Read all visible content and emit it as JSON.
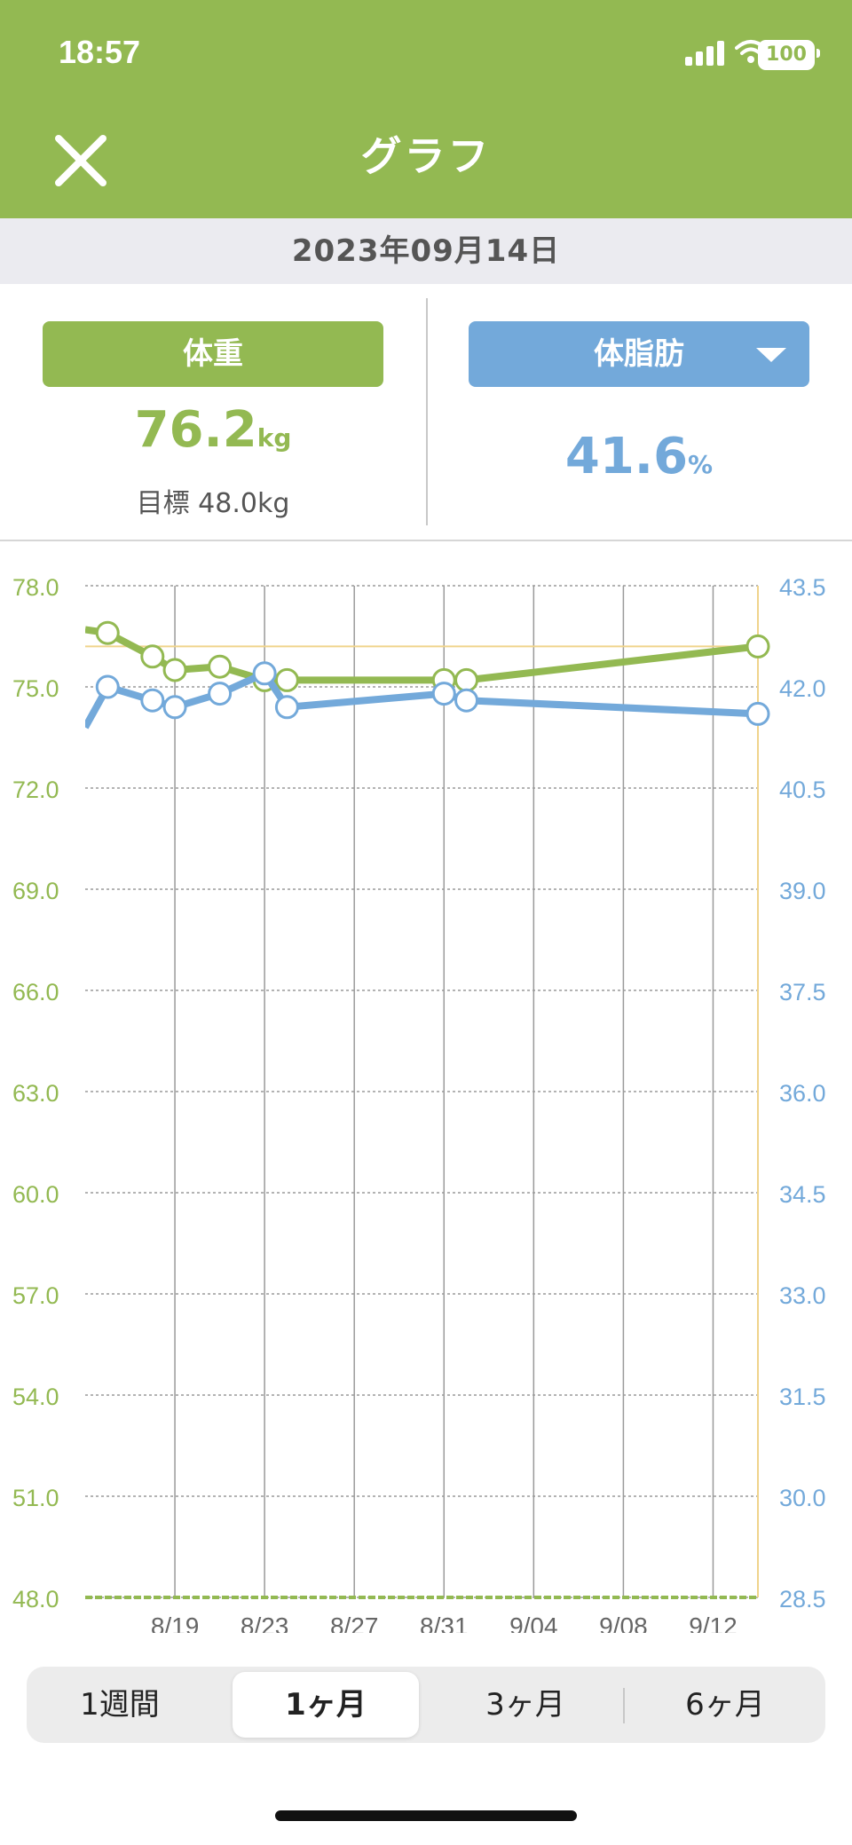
{
  "status_bar": {
    "time": "18:57",
    "battery": "100"
  },
  "header": {
    "title": "グラフ"
  },
  "date_bar": {
    "date": "2023年09月14日"
  },
  "weight_panel": {
    "label": "体重",
    "value": "76.2",
    "unit": "kg",
    "goal": "目標 48.0kg"
  },
  "fat_panel": {
    "label": "体脂肪",
    "value": "41.6",
    "unit": "%"
  },
  "colors": {
    "weight": "#93b952",
    "fat": "#73a9da",
    "goal_line": "#f0d48c"
  },
  "chart_data": {
    "type": "line",
    "x_tick_labels": [
      "8/19",
      "8/23",
      "8/27",
      "8/31",
      "9/04",
      "9/08",
      "9/12"
    ],
    "y_left": {
      "ticks": [
        "78.0",
        "75.0",
        "72.0",
        "69.0",
        "66.0",
        "63.0",
        "60.0",
        "57.0",
        "54.0",
        "51.0",
        "48.0"
      ],
      "ylim": [
        48,
        78
      ]
    },
    "y_right": {
      "ticks": [
        "43.5",
        "42.0",
        "40.5",
        "39.0",
        "37.5",
        "36.0",
        "34.5",
        "33.0",
        "31.5",
        "30.0",
        "28.5"
      ],
      "ylim": [
        28.5,
        43.5
      ]
    },
    "goal_value": 48.0,
    "current_weight_line": 76.2,
    "series": [
      {
        "name": "体重",
        "axis": "left",
        "x": [
          "8/15",
          "8/16",
          "8/18",
          "8/19",
          "8/21",
          "8/23",
          "8/24",
          "8/31",
          "9/01",
          "9/14"
        ],
        "values": [
          76.7,
          76.6,
          75.9,
          75.5,
          75.6,
          75.2,
          75.2,
          75.2,
          75.2,
          76.2
        ],
        "markers": [
          false,
          true,
          true,
          true,
          true,
          true,
          true,
          true,
          true,
          true
        ]
      },
      {
        "name": "体脂肪",
        "axis": "right",
        "x": [
          "8/15",
          "8/16",
          "8/18",
          "8/19",
          "8/21",
          "8/23",
          "8/24",
          "8/31",
          "9/01",
          "9/14"
        ],
        "values": [
          41.4,
          42.0,
          41.8,
          41.7,
          41.9,
          42.2,
          41.7,
          41.9,
          41.8,
          41.6
        ],
        "markers": [
          false,
          true,
          true,
          true,
          true,
          true,
          true,
          true,
          true,
          true
        ]
      }
    ]
  },
  "period_tabs": [
    {
      "label": "1週間",
      "active": false
    },
    {
      "label": "1ヶ月",
      "active": true
    },
    {
      "label": "3ヶ月",
      "active": false
    },
    {
      "label": "6ヶ月",
      "active": false
    }
  ]
}
